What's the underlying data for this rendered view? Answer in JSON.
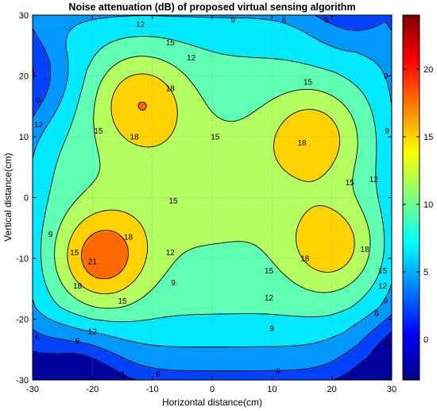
{
  "chart_data": {
    "type": "filled-contour",
    "title": "Noise attenuation (dB) of proposed virtual sensing algorithm",
    "xlabel": "Horizontal distance(cm)",
    "ylabel": "Vertical distance(cm)",
    "xlim": [
      -30,
      30
    ],
    "ylim": [
      -30,
      30
    ],
    "xticks": [
      "-30",
      "-20",
      "-10",
      "0",
      "10",
      "20",
      "30"
    ],
    "yticks": [
      "-30",
      "-20",
      "-10",
      "0",
      "10",
      "20",
      "30"
    ],
    "grid": true,
    "colormap": "jet",
    "clim": [
      -3,
      24
    ],
    "colorbar_ticks": [
      "0",
      "5",
      "10",
      "15",
      "20"
    ],
    "contour_levels": [
      0,
      3,
      6,
      9,
      12,
      15,
      18,
      21
    ],
    "band_colors": [
      "#00009e",
      "#0042ff",
      "#0098ff",
      "#00e9ff",
      "#5fffb4",
      "#b4ff5f",
      "#ffd200",
      "#ff6a00",
      "#e60000"
    ],
    "peaks": [
      {
        "x": -18.5,
        "y": -10,
        "value": 22
      },
      {
        "x": -12,
        "y": 16,
        "value": 19.5
      },
      {
        "x": 17,
        "y": 10,
        "value": 19
      },
      {
        "x": 20,
        "y": -8,
        "value": 19.5
      }
    ],
    "troughs": [
      {
        "x": -31,
        "y": 20,
        "value": 3
      },
      {
        "x": -24,
        "y": -31,
        "value": 1
      },
      {
        "x": 31,
        "y": -28,
        "value": 2
      },
      {
        "x": 24,
        "y": 31,
        "value": 4
      }
    ],
    "contour_labels": [
      {
        "text": "12",
        "x": -12,
        "y": 28.5
      },
      {
        "text": "9",
        "x": 3.5,
        "y": 29.5
      },
      {
        "text": "6",
        "x": 12,
        "y": 29.5
      },
      {
        "text": "3",
        "x": 19,
        "y": 30
      },
      {
        "text": "15",
        "x": -7,
        "y": 25.5
      },
      {
        "text": "12",
        "x": -3.5,
        "y": 23
      },
      {
        "text": "9",
        "x": 29,
        "y": 20
      },
      {
        "text": "15",
        "x": 16,
        "y": 19
      },
      {
        "text": "18",
        "x": -7,
        "y": 18
      },
      {
        "text": "18",
        "x": -13,
        "y": 10
      },
      {
        "text": "15",
        "x": -19,
        "y": 11
      },
      {
        "text": "15",
        "x": 0.5,
        "y": 10
      },
      {
        "text": "18",
        "x": 15,
        "y": 9
      },
      {
        "text": "9",
        "x": 30,
        "y": 11
      },
      {
        "text": "12",
        "x": -29,
        "y": 12
      },
      {
        "text": "6",
        "x": -29,
        "y": 16
      },
      {
        "text": "12",
        "x": 27,
        "y": 3
      },
      {
        "text": "15",
        "x": 23,
        "y": 2.5
      },
      {
        "text": "15",
        "x": -6.5,
        "y": -0.5
      },
      {
        "text": "9",
        "x": -27,
        "y": -6
      },
      {
        "text": "15",
        "x": -23,
        "y": -9
      },
      {
        "text": "18",
        "x": -14,
        "y": -6.5
      },
      {
        "text": "21",
        "x": -20,
        "y": -10.5
      },
      {
        "text": "18",
        "x": -22.5,
        "y": -14.5
      },
      {
        "text": "12",
        "x": -7,
        "y": -9
      },
      {
        "text": "15",
        "x": -15,
        "y": -17
      },
      {
        "text": "9",
        "x": -6.5,
        "y": -14
      },
      {
        "text": "18",
        "x": 15.5,
        "y": -10
      },
      {
        "text": "18",
        "x": 25.5,
        "y": -8.5
      },
      {
        "text": "15",
        "x": 9.5,
        "y": -12
      },
      {
        "text": "12",
        "x": 9.5,
        "y": -16.5
      },
      {
        "text": "15",
        "x": 28.5,
        "y": -12
      },
      {
        "text": "12",
        "x": 28.5,
        "y": -14.5
      },
      {
        "text": "9",
        "x": 29,
        "y": -17
      },
      {
        "text": "6",
        "x": 27.5,
        "y": -19
      },
      {
        "text": "3",
        "x": 30,
        "y": -24
      },
      {
        "text": "12",
        "x": -20,
        "y": -22
      },
      {
        "text": "9",
        "x": -22.5,
        "y": -23.5
      },
      {
        "text": "9",
        "x": 10,
        "y": -21.5
      },
      {
        "text": "6",
        "x": -30,
        "y": -23
      },
      {
        "text": "6",
        "x": -9,
        "y": -29
      },
      {
        "text": "6",
        "x": 11,
        "y": -28.5
      },
      {
        "text": "3",
        "x": -15,
        "y": -29
      }
    ]
  }
}
